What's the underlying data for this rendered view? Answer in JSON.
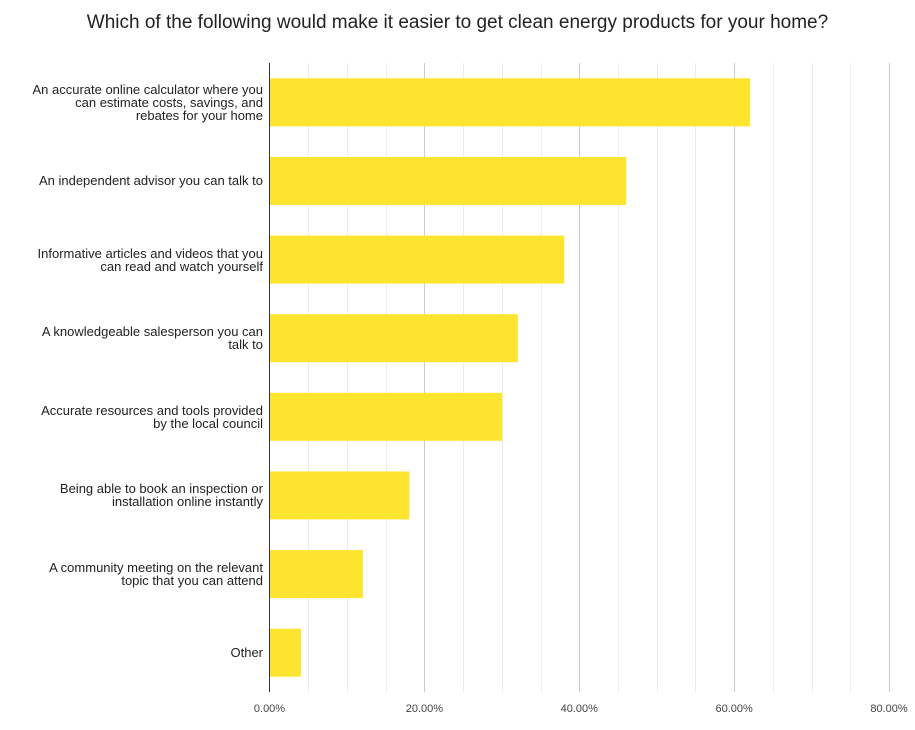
{
  "chart_data": {
    "type": "bar",
    "orientation": "horizontal",
    "title": "Which of the following would make it easier to get clean energy products for your home?",
    "categories": [
      "An accurate online calculator where you can estimate costs, savings, and rebates for your home",
      "An independent advisor you can talk to",
      "Informative articles and videos that you can read and watch yourself",
      "A knowledgeable salesperson you can talk to",
      "Accurate resources and tools provided by the local council",
      "Being able to book an inspection or installation online instantly",
      "A community meeting on the relevant topic that you can attend",
      "Other"
    ],
    "category_lines": [
      [
        "An accurate online calculator where you",
        "can estimate costs, savings, and",
        "rebates for your home"
      ],
      [
        "An independent advisor you can talk to"
      ],
      [
        "Informative articles and videos that you",
        "can read and watch yourself"
      ],
      [
        "A knowledgeable salesperson you can",
        "talk to"
      ],
      [
        "Accurate resources and tools provided",
        "by the local council"
      ],
      [
        "Being able to book an inspection or",
        "installation online instantly"
      ],
      [
        "A community meeting on the relevant",
        "topic that you can attend"
      ],
      [
        "Other"
      ]
    ],
    "values": [
      62,
      46,
      38,
      32,
      30,
      18,
      12,
      4
    ],
    "xlim": [
      0,
      80
    ],
    "xticks": [
      "0.00%",
      "20.00%",
      "40.00%",
      "60.00%",
      "80.00%"
    ],
    "xlabel": "",
    "ylabel": "",
    "grid": true,
    "bar_color": "#fde42f"
  }
}
